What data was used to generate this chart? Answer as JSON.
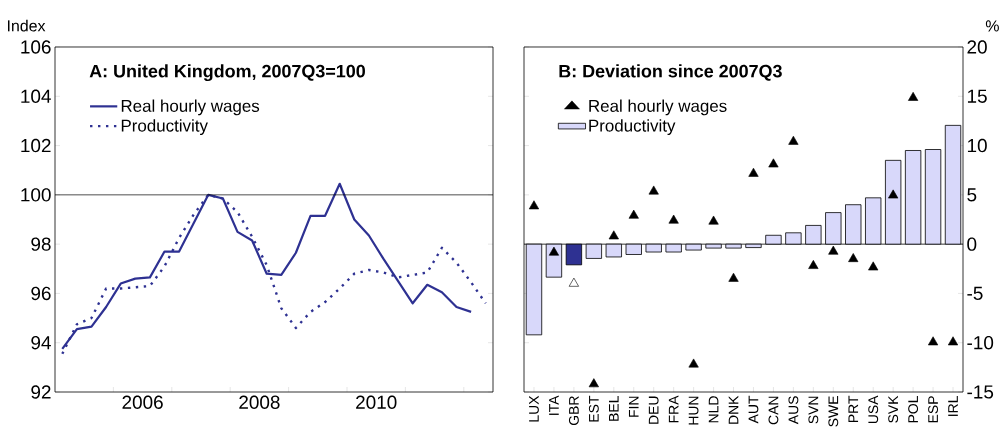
{
  "chart_data": [
    {
      "type": "line",
      "title": "A: United Kingdom, 2007Q3=100",
      "ylabel": "Index",
      "legend": "top left",
      "xlim": [
        2005,
        2012.5
      ],
      "xticks": [
        {
          "value": 2006,
          "label": null
        },
        {
          "value": 2007,
          "label": null
        },
        {
          "value": 2008,
          "label": null
        },
        {
          "value": 2009,
          "label": null
        },
        {
          "value": 2010,
          "label": null
        },
        {
          "value": 2011,
          "label": null
        },
        {
          "value": 2012,
          "label": null
        },
        {
          "value": 2006.5,
          "label": "2006"
        },
        {
          "value": 2008.5,
          "label": "2008"
        },
        {
          "value": 2010.5,
          "label": "2010"
        }
      ],
      "ylim": [
        92,
        106
      ],
      "yticks": [
        92,
        94,
        96,
        98,
        100,
        102,
        104,
        106
      ],
      "ref_lines": [
        {
          "axis": "y",
          "value": 100,
          "color": "#000000"
        }
      ],
      "series": [
        {
          "name": "Real hourly wages",
          "color": "#2e3192",
          "line_style": "solid",
          "x": [
            2005.125,
            2005.375,
            2005.625,
            2005.875,
            2006.125,
            2006.375,
            2006.625,
            2006.875,
            2007.125,
            2007.375,
            2007.625,
            2007.875,
            2008.125,
            2008.375,
            2008.625,
            2008.875,
            2009.125,
            2009.375,
            2009.625,
            2009.875,
            2010.125,
            2010.375,
            2010.625,
            2010.875,
            2011.125,
            2011.375,
            2011.625,
            2011.875,
            2012.125
          ],
          "values": [
            93.75,
            94.55,
            94.65,
            95.45,
            96.4,
            96.6,
            96.65,
            97.7,
            97.7,
            98.85,
            100,
            99.85,
            98.5,
            98.15,
            96.8,
            96.75,
            97.65,
            99.15,
            99.15,
            100.45,
            99.0,
            98.35,
            97.4,
            96.5,
            95.6,
            96.35,
            96.05,
            95.45,
            95.25
          ]
        },
        {
          "name": "Productivity",
          "color": "#2e3192",
          "line_style": "dotted",
          "x": [
            2005.125,
            2005.375,
            2005.625,
            2005.875,
            2006.125,
            2006.375,
            2006.625,
            2006.875,
            2007.125,
            2007.375,
            2007.625,
            2007.875,
            2008.125,
            2008.375,
            2008.625,
            2008.875,
            2009.125,
            2009.375,
            2009.625,
            2009.875,
            2010.125,
            2010.375,
            2010.625,
            2010.875,
            2011.125,
            2011.375,
            2011.625,
            2011.875,
            2012.125,
            2012.375
          ],
          "values": [
            93.55,
            94.75,
            95.0,
            96.2,
            96.2,
            96.25,
            96.3,
            97.1,
            98.25,
            99.2,
            100,
            99.85,
            99.3,
            98.3,
            97.15,
            95.4,
            94.6,
            95.25,
            95.65,
            96.2,
            96.8,
            96.95,
            96.85,
            96.65,
            96.75,
            96.85,
            97.85,
            97.25,
            96.45,
            95.6
          ]
        }
      ]
    },
    {
      "type": "bar",
      "title": "B: Deviation since 2007Q3",
      "ylabel": "%",
      "legend": "top left",
      "categories": [
        "LUX",
        "ITA",
        "GBR",
        "EST",
        "BEL",
        "FIN",
        "DEU",
        "FRA",
        "HUN",
        "NLD",
        "DNK",
        "AUT",
        "CAN",
        "AUS",
        "SVN",
        "SWE",
        "PRT",
        "USA",
        "SVK",
        "POL",
        "ESP",
        "IRL"
      ],
      "ylim": [
        -15,
        20
      ],
      "yticks": [
        -15,
        -10,
        -5,
        0,
        5,
        10,
        15,
        20
      ],
      "series": [
        {
          "name": "Real hourly wages",
          "type": "scatter",
          "marker": "triangle",
          "color": "#000000",
          "colors": [
            "#000000",
            "#000000",
            "#ffffff",
            "#000000",
            "#000000",
            "#000000",
            "#000000",
            "#000000",
            "#000000",
            "#000000",
            "#000000",
            "#000000",
            "#000000",
            "#000000",
            "#000000",
            "#000000",
            "#000000",
            "#000000",
            "#000000",
            "#000000",
            "#000000",
            "#000000"
          ],
          "values": [
            3.85,
            -0.85,
            -4.0,
            -14.2,
            0.8,
            2.9,
            5.35,
            2.4,
            -12.2,
            2.3,
            -3.5,
            7.15,
            8.1,
            10.4,
            -2.2,
            -0.75,
            -1.5,
            -2.35,
            4.95,
            14.85,
            -9.95,
            -9.95
          ]
        },
        {
          "name": "Productivity",
          "type": "bar",
          "color": "#d8d8fa",
          "colors": [
            "#d8d8fa",
            "#d8d8fa",
            "#2e3192",
            "#d8d8fa",
            "#d8d8fa",
            "#d8d8fa",
            "#d8d8fa",
            "#d8d8fa",
            "#d8d8fa",
            "#d8d8fa",
            "#d8d8fa",
            "#d8d8fa",
            "#d8d8fa",
            "#d8d8fa",
            "#d8d8fa",
            "#d8d8fa",
            "#d8d8fa",
            "#d8d8fa",
            "#d8d8fa",
            "#d8d8fa",
            "#d8d8fa",
            "#d8d8fa"
          ],
          "values": [
            -9.2,
            -3.35,
            -2.1,
            -1.45,
            -1.3,
            -1.05,
            -0.8,
            -0.8,
            -0.6,
            -0.4,
            -0.4,
            -0.35,
            0.9,
            1.15,
            1.9,
            3.2,
            4.0,
            4.7,
            8.5,
            9.5,
            9.6,
            12.05
          ]
        }
      ]
    }
  ]
}
